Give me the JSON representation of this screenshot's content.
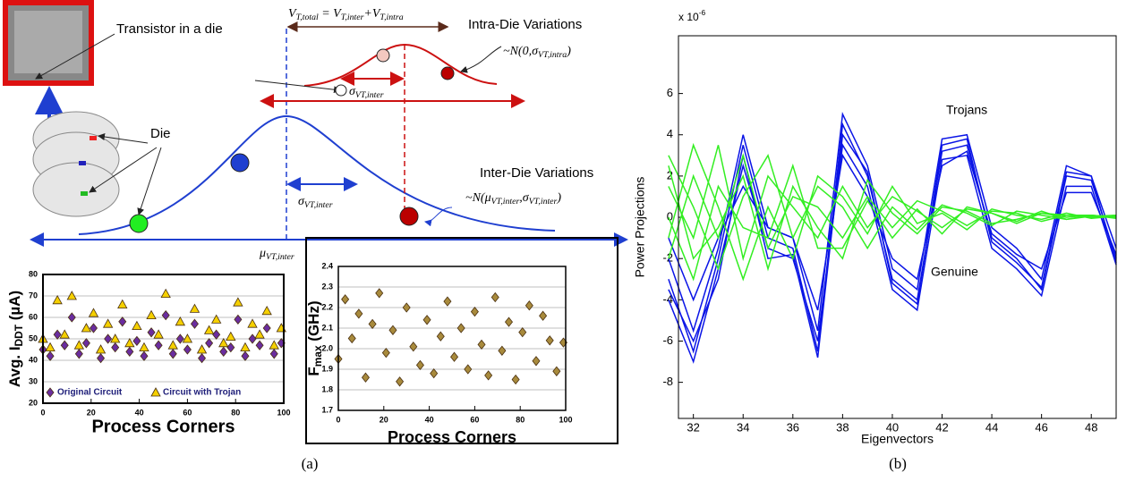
{
  "diagram": {
    "transistor_label": "Transistor in a die",
    "die_label": "Die",
    "intra_title": "Intra-Die Variations",
    "inter_title": "Inter-Die Variations",
    "vt_total": [
      "V",
      "T,total",
      " = V",
      "T,inter",
      "+V",
      "T,intra"
    ],
    "intra_dist": [
      "~N(0,σ",
      "VT,intra",
      ")"
    ],
    "inter_dist": [
      "~N(μ",
      "VT,inter",
      ",σ",
      "VT,inter",
      ")"
    ],
    "sigma_small": [
      "σ",
      "VT,inter"
    ],
    "sigma_large": [
      "σ",
      "VT,inter"
    ],
    "mu_label": [
      "μ",
      "VT,inter"
    ]
  },
  "captions": [
    "(a)",
    "(b)"
  ],
  "chart_data": [
    {
      "type": "scatter",
      "y_label": [
        "Avg. I",
        "DDT",
        " (µA)"
      ],
      "x_label": "Process Corners",
      "x": [
        0,
        3,
        6,
        9,
        12,
        15,
        18,
        21,
        24,
        27,
        30,
        33,
        36,
        39,
        42,
        45,
        48,
        51,
        54,
        57,
        60,
        63,
        66,
        69,
        72,
        75,
        78,
        81,
        84,
        87,
        90,
        93,
        96,
        99
      ],
      "series": [
        {
          "name": "Original Circuit",
          "color": "#6a2d9f",
          "marker": "diamond",
          "values": [
            45,
            42,
            52,
            47,
            60,
            43,
            48,
            55,
            41,
            50,
            46,
            58,
            44,
            49,
            42,
            53,
            47,
            61,
            43,
            50,
            45,
            57,
            41,
            48,
            52,
            44,
            46,
            59,
            42,
            50,
            47,
            55,
            43,
            48
          ]
        },
        {
          "name": "Circuit with Trojan",
          "color": "#f5d000",
          "marker": "triangle",
          "values": [
            50,
            46,
            68,
            52,
            70,
            47,
            55,
            62,
            45,
            57,
            50,
            66,
            48,
            56,
            46,
            61,
            52,
            71,
            47,
            58,
            50,
            64,
            45,
            54,
            59,
            48,
            51,
            67,
            46,
            57,
            52,
            63,
            47,
            55
          ]
        }
      ],
      "xlim": [
        0,
        100
      ],
      "xticks": [
        0,
        20,
        40,
        60,
        80,
        100
      ],
      "ylim": [
        20,
        80
      ],
      "yticks": [
        20,
        30,
        40,
        50,
        60,
        70,
        80
      ],
      "grid": true
    },
    {
      "type": "scatter",
      "y_label": [
        "F",
        "max",
        " (GHz)"
      ],
      "x_label": "Process Corners",
      "x": [
        0,
        3,
        6,
        9,
        12,
        15,
        18,
        21,
        24,
        27,
        30,
        33,
        36,
        39,
        42,
        45,
        48,
        51,
        54,
        57,
        60,
        63,
        66,
        69,
        72,
        75,
        78,
        81,
        84,
        87,
        90,
        93,
        96,
        99
      ],
      "series": [
        {
          "color": "#a88a3c",
          "marker": "diamond",
          "values": [
            1.95,
            2.24,
            2.05,
            2.17,
            1.86,
            2.12,
            2.27,
            1.98,
            2.09,
            1.84,
            2.2,
            2.01,
            1.92,
            2.14,
            1.88,
            2.06,
            2.23,
            1.96,
            2.1,
            1.9,
            2.18,
            2.02,
            1.87,
            2.25,
            1.99,
            2.13,
            1.85,
            2.08,
            2.21,
            1.94,
            2.16,
            2.04,
            1.89,
            2.03
          ]
        }
      ],
      "xlim": [
        0,
        100
      ],
      "xticks": [
        0,
        20,
        40,
        60,
        80,
        100
      ],
      "ylim": [
        1.7,
        2.4
      ],
      "yticks": [
        1.7,
        1.8,
        1.9,
        {
          "value": 2,
          "label": "2.0"
        },
        2.1,
        2.2,
        2.3,
        2.4
      ],
      "grid": true
    },
    {
      "type": "line",
      "y_label": "Power Projections",
      "x_label": "Eigenvectors",
      "exponent": [
        "x 10",
        "-6"
      ],
      "annotations": [
        "Trojans",
        "Genuine"
      ],
      "x": [
        31,
        32,
        33,
        34,
        35,
        36,
        37,
        38,
        39,
        40,
        41,
        42,
        43,
        44,
        45,
        46,
        47,
        48,
        49
      ],
      "series": [
        {
          "color": "#0a14e6",
          "values": [
            -3,
            -6.5,
            -2,
            3.5,
            -1,
            -1.5,
            -6.5,
            4.5,
            2,
            -3,
            -4,
            3.2,
            3.5,
            -1,
            -2,
            -3.5,
            2,
            1.8,
            -2
          ]
        },
        {
          "color": "#0a14e6",
          "values": [
            -2,
            -5.5,
            -1.5,
            4,
            -0.5,
            -1,
            -5.5,
            5,
            2.5,
            -2.5,
            -3.5,
            3.8,
            4,
            -0.5,
            -1.5,
            -3,
            2.5,
            2,
            -1.5
          ]
        },
        {
          "color": "#0a14e6",
          "values": [
            -4,
            -7,
            -2.5,
            2.5,
            -1.5,
            -2,
            -6,
            3.5,
            1.5,
            -3.5,
            -4.5,
            2.8,
            3,
            -1.5,
            -2.5,
            -3.8,
            1.5,
            1.5,
            -2.3
          ]
        },
        {
          "color": "#0a14e6",
          "values": [
            -1,
            -4,
            -1,
            1.5,
            -0.5,
            -1,
            -4.5,
            3,
            1,
            -2,
            -3,
            2.5,
            3.2,
            -0.8,
            -1.8,
            -2.5,
            1.2,
            1.2,
            -1.8
          ]
        },
        {
          "color": "#0a14e6",
          "values": [
            -3.5,
            -6,
            -3,
            3,
            -2,
            -1.8,
            -6.8,
            4,
            2.2,
            -3.2,
            -4.2,
            3.5,
            3.8,
            -1.2,
            -2.2,
            -3.4,
            2.2,
            2,
            -2.2
          ]
        },
        {
          "color": "#33ee22",
          "values": [
            1.5,
            -1,
            3.5,
            -2,
            2,
            0.5,
            -1,
            1.5,
            -0.5,
            1,
            0.3,
            -0.5,
            0.4,
            0.2,
            -0.3,
            0.2,
            0.1,
            0,
            0.1
          ]
        },
        {
          "color": "#33ee22",
          "values": [
            -2,
            2,
            -1,
            3,
            -1.5,
            1,
            0.5,
            -1,
            1,
            -0.5,
            0.8,
            0.3,
            -0.4,
            0.3,
            0.2,
            -0.2,
            0.1,
            0.1,
            0
          ]
        },
        {
          "color": "#33ee22",
          "values": [
            3,
            0.5,
            -2.5,
            1,
            3,
            -1,
            1.5,
            0.5,
            -1.5,
            0.5,
            -0.6,
            0.6,
            0.2,
            -0.4,
            0.3,
            0.1,
            -0.1,
            0.05,
            0.1
          ]
        },
        {
          "color": "#33ee22",
          "values": [
            0,
            -3,
            1.5,
            -0.5,
            -1,
            2.5,
            -1.5,
            -1.5,
            0.8,
            -1,
            0.4,
            -0.8,
            0.5,
            0.2,
            -0.2,
            0.3,
            -0.1,
            0.1,
            0
          ]
        },
        {
          "color": "#33ee22",
          "values": [
            -1,
            3.5,
            0.5,
            -3,
            0.5,
            -2,
            2,
            1,
            -0.8,
            1.5,
            -0.3,
            0.2,
            -0.6,
            0.4,
            0.1,
            -0.1,
            0.2,
            -0.05,
            0.05
          ]
        },
        {
          "color": "#33ee22",
          "values": [
            2.5,
            -2,
            -0.5,
            2,
            -2.5,
            1.5,
            -0.5,
            -2,
            1.8,
            0.2,
            -0.8,
            0.5,
            0.3,
            -0.3,
            -0.1,
            0.2,
            0,
            0.1,
            -0.05
          ]
        }
      ],
      "xlim": [
        31.4,
        49
      ],
      "xticks": [
        32,
        34,
        36,
        38,
        40,
        42,
        44,
        46,
        48
      ],
      "ylim": [
        -9.75,
        8.8
      ],
      "yticks": [
        -8,
        -6,
        -4,
        -2,
        0,
        2,
        4,
        6
      ],
      "grid": false
    }
  ]
}
